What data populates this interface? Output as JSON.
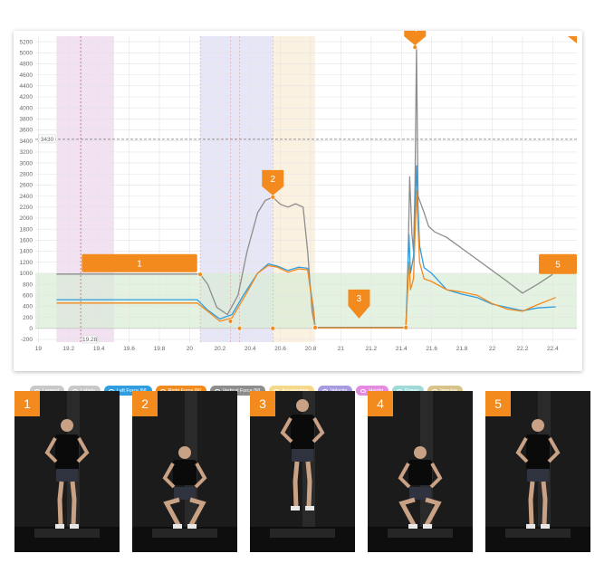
{
  "chart_data": {
    "type": "line",
    "xlim": [
      18.98,
      22.56
    ],
    "ylim": [
      -250,
      5300
    ],
    "x_ticks": [
      19,
      19.2,
      19.4,
      19.6,
      19.8,
      20,
      20.2,
      20.4,
      20.6,
      20.8,
      21,
      21.2,
      21.4,
      21.6,
      21.8,
      22,
      22.2,
      22.4
    ],
    "x_tick_labels": [
      "19",
      "19.2",
      "19.4",
      "19.6",
      "19.8",
      "20",
      "20.2",
      "20.4",
      "20.6",
      "20.8",
      "21",
      "21.2",
      "21.4",
      "21.6",
      "21.8",
      "22",
      "22.2",
      "22.4"
    ],
    "y_ticks": [
      -200,
      0,
      200,
      400,
      600,
      800,
      1000,
      1200,
      1400,
      1600,
      1800,
      2000,
      2200,
      2400,
      2600,
      2800,
      3000,
      3200,
      3400,
      3600,
      3800,
      4000,
      4200,
      4400,
      4600,
      4800,
      5000,
      5200
    ],
    "y_tick_labels": [
      "-200",
      "0",
      "200",
      "400",
      "600",
      "800",
      "1000",
      "1200",
      "1400",
      "1600",
      "1800",
      "2000",
      "2200",
      "2400",
      "2600",
      "2800",
      "3000",
      "3200",
      "3400",
      "3600",
      "3800",
      "4000",
      "4200",
      "4400",
      "4600",
      "4800",
      "5000",
      "5200"
    ],
    "grid": true,
    "reference_line": {
      "y": 3430,
      "label": "3430"
    },
    "cursor_line": {
      "x": 19.28,
      "label": "19.28"
    },
    "shaded_regions": [
      {
        "x0": 19.12,
        "x1": 19.5,
        "color": "#e6c8e6"
      },
      {
        "x0": 20.07,
        "x1": 20.55,
        "color": "#d4d2ee"
      },
      {
        "x0": 20.55,
        "x1": 20.83,
        "color": "#f7e6c6"
      }
    ],
    "band": {
      "y0": 0,
      "y1": 1000,
      "color": "#d8ecd4"
    },
    "series": [
      {
        "name": "Vertical Force [N]",
        "color": "#8d8d8d",
        "x": [
          19.12,
          20.05,
          20.07,
          20.12,
          20.18,
          20.25,
          20.32,
          20.38,
          20.45,
          20.5,
          20.55,
          20.6,
          20.65,
          20.7,
          20.75,
          20.78,
          20.81,
          20.83,
          21.43,
          21.44,
          21.455,
          21.47,
          21.48,
          21.49,
          21.5,
          21.51,
          21.53,
          21.55,
          21.58,
          21.62,
          21.7,
          21.8,
          21.9,
          22,
          22.1,
          22.2,
          22.3,
          22.4
        ],
        "y": [
          985,
          985,
          980,
          800,
          380,
          250,
          600,
          1400,
          2100,
          2320,
          2380,
          2250,
          2200,
          2260,
          2200,
          1400,
          300,
          20,
          20,
          700,
          2750,
          1700,
          1400,
          2600,
          5100,
          2400,
          2250,
          2100,
          1850,
          1750,
          1650,
          1450,
          1250,
          1050,
          850,
          640,
          800,
          980
        ]
      },
      {
        "name": "Left Force [N]",
        "color": "#2f9de0",
        "x": [
          19.12,
          20.05,
          20.12,
          20.2,
          20.28,
          20.36,
          20.45,
          20.52,
          20.58,
          20.65,
          20.72,
          20.78,
          20.82,
          20.83,
          21.43,
          21.45,
          21.46,
          21.48,
          21.49,
          21.5,
          21.52,
          21.55,
          21.6,
          21.7,
          21.8,
          21.9,
          22,
          22.1,
          22.2,
          22.3,
          22.42
        ],
        "y": [
          520,
          520,
          330,
          170,
          250,
          620,
          1000,
          1170,
          1130,
          1050,
          1110,
          1090,
          320,
          15,
          15,
          1700,
          1000,
          1300,
          2000,
          2950,
          1500,
          1100,
          1000,
          700,
          620,
          560,
          440,
          380,
          320,
          370,
          390
        ]
      },
      {
        "name": "Right Force [N]",
        "color": "#f28a1e",
        "x": [
          19.12,
          20.05,
          20.12,
          20.2,
          20.28,
          20.36,
          20.45,
          20.52,
          20.58,
          20.65,
          20.72,
          20.78,
          20.82,
          20.83,
          21.43,
          21.45,
          21.46,
          21.48,
          21.49,
          21.5,
          21.52,
          21.55,
          21.6,
          21.7,
          21.8,
          21.9,
          22,
          22.1,
          22.2,
          22.3,
          22.42
        ],
        "y": [
          460,
          460,
          310,
          130,
          190,
          560,
          1000,
          1140,
          1110,
          1020,
          1080,
          1060,
          280,
          10,
          10,
          1200,
          700,
          900,
          1700,
          2500,
          1200,
          900,
          850,
          700,
          660,
          600,
          450,
          350,
          310,
          430,
          560
        ]
      }
    ],
    "event_points": [
      {
        "x": 20.07,
        "y": 980,
        "color": "#f28a1e"
      },
      {
        "x": 20.27,
        "y": 130,
        "color": "#f28a1e"
      },
      {
        "x": 20.55,
        "y": 2380,
        "color": "#f28a1e"
      },
      {
        "x": 20.83,
        "y": 15,
        "color": "#f28a1e"
      },
      {
        "x": 20.33,
        "y": 0,
        "color": "#f28a1e"
      },
      {
        "x": 20.55,
        "y": 0,
        "color": "#f28a1e"
      },
      {
        "x": 21.43,
        "y": 15,
        "color": "#f28a1e"
      },
      {
        "x": 21.49,
        "y": 5100,
        "color": "#f28a1e"
      }
    ],
    "callouts": [
      {
        "label": "1",
        "shape": "bar",
        "x0": 19.12,
        "x1": 20.05,
        "y": 1200
      },
      {
        "label": "2",
        "shape": "pin",
        "x": 20.55,
        "y": 2380
      },
      {
        "label": "3",
        "shape": "pin",
        "x": 21.12,
        "y": 80
      },
      {
        "label": "4",
        "shape": "pin",
        "x": 21.49,
        "y": 5100
      },
      {
        "label": "5",
        "shape": "tab",
        "x": 22.5,
        "y": 1200
      }
    ],
    "legend_items": [
      {
        "label": "Legend",
        "color": "#c8c8c8"
      },
      {
        "label": "Labels",
        "color": "#c8c8c8"
      },
      {
        "label": "Left Force [N]",
        "color": "#2f9de0"
      },
      {
        "label": "Right Force [N]",
        "color": "#f28a1e"
      },
      {
        "label": "Vertical Force [N]",
        "color": "#8d8d8d"
      },
      {
        "label": "Acceleration",
        "color": "#f5d88a"
      },
      {
        "label": "Velocity",
        "color": "#a79be0"
      },
      {
        "label": "Height",
        "color": "#e48ae0"
      },
      {
        "label": "Power",
        "color": "#9fdad8"
      },
      {
        "label": "Impulse",
        "color": "#d8c48a"
      }
    ]
  },
  "photos": [
    {
      "number": "1",
      "pose": "standing"
    },
    {
      "number": "2",
      "pose": "squat"
    },
    {
      "number": "3",
      "pose": "jump"
    },
    {
      "number": "4",
      "pose": "landing"
    },
    {
      "number": "5",
      "pose": "standing"
    }
  ]
}
